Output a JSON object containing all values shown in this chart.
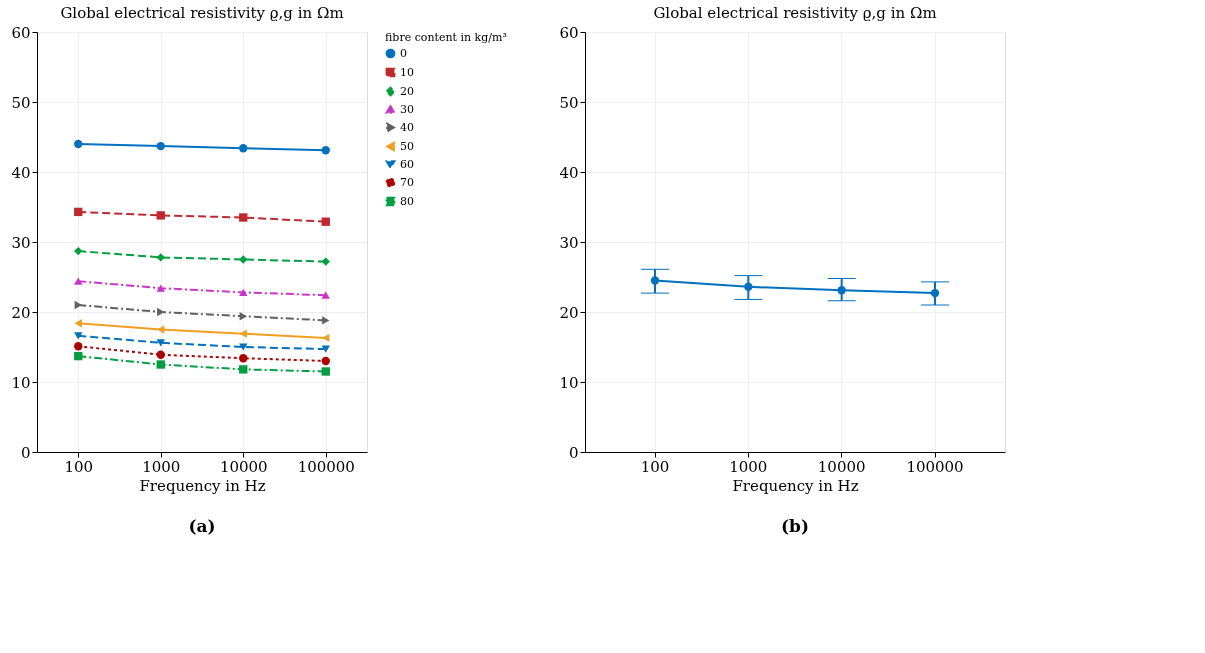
{
  "chart_data": [
    {
      "type": "line",
      "title": "Global electrical resistivity ϱ,g in Ωm",
      "xlabel": "Frequency in Hz",
      "categories": [
        "100",
        "1000",
        "10000",
        "100000"
      ],
      "ylim": [
        0,
        60
      ],
      "yticks": [
        0,
        10,
        20,
        30,
        40,
        50,
        60
      ],
      "grid": true,
      "legend": "right",
      "legend_title": "fibre content in kg/m³",
      "annotations": [
        "(a)"
      ],
      "series": [
        {
          "name": "0",
          "color": "#0070c0",
          "marker": "circle",
          "line_style": "solid",
          "values": [
            44.0,
            43.7,
            43.4,
            43.1
          ]
        },
        {
          "name": "10",
          "color": "#c0282d",
          "marker": "square",
          "line_style": "dashed",
          "values": [
            34.3,
            33.8,
            33.5,
            32.9
          ]
        },
        {
          "name": "20",
          "color": "#00a040",
          "marker": "diamond",
          "line_style": "dashed",
          "values": [
            28.7,
            27.8,
            27.5,
            27.2
          ]
        },
        {
          "name": "30",
          "color": "#cc33cc",
          "marker": "triangle-up",
          "line_style": "dashdot",
          "values": [
            24.4,
            23.4,
            22.8,
            22.4
          ]
        },
        {
          "name": "40",
          "color": "#606060",
          "marker": "triangle-right",
          "line_style": "dashdot",
          "values": [
            21.0,
            20.0,
            19.4,
            18.8
          ]
        },
        {
          "name": "50",
          "color": "#f0a020",
          "marker": "triangle-left",
          "line_style": "solid",
          "values": [
            18.4,
            17.5,
            16.9,
            16.3
          ]
        },
        {
          "name": "60",
          "color": "#0070c0",
          "marker": "triangle-down",
          "line_style": "dashed",
          "values": [
            16.6,
            15.6,
            15.0,
            14.7
          ]
        },
        {
          "name": "70",
          "color": "#b00000",
          "marker": "circle",
          "line_style": "dotted",
          "values": [
            15.1,
            13.9,
            13.4,
            13.0
          ]
        },
        {
          "name": "80",
          "color": "#00a040",
          "marker": "square",
          "line_style": "dashdot",
          "values": [
            13.7,
            12.5,
            11.8,
            11.5
          ]
        }
      ]
    },
    {
      "type": "line",
      "title": "Global electrical resistivity ϱ,g in Ωm",
      "xlabel": "Frequency in Hz",
      "categories": [
        "100",
        "1000",
        "10000",
        "100000"
      ],
      "ylim": [
        0,
        60
      ],
      "yticks": [
        0,
        10,
        20,
        30,
        40,
        50,
        60
      ],
      "grid": true,
      "annotations": [
        "(b)"
      ],
      "series": [
        {
          "color": "#0070c0",
          "marker": "circle",
          "line_style": "solid",
          "values": [
            24.5,
            23.6,
            23.1,
            22.7
          ],
          "errors": [
            [
              22.7,
              26.1
            ],
            [
              21.8,
              25.2
            ],
            [
              21.6,
              24.8
            ],
            [
              21.0,
              24.3
            ]
          ]
        }
      ]
    }
  ]
}
